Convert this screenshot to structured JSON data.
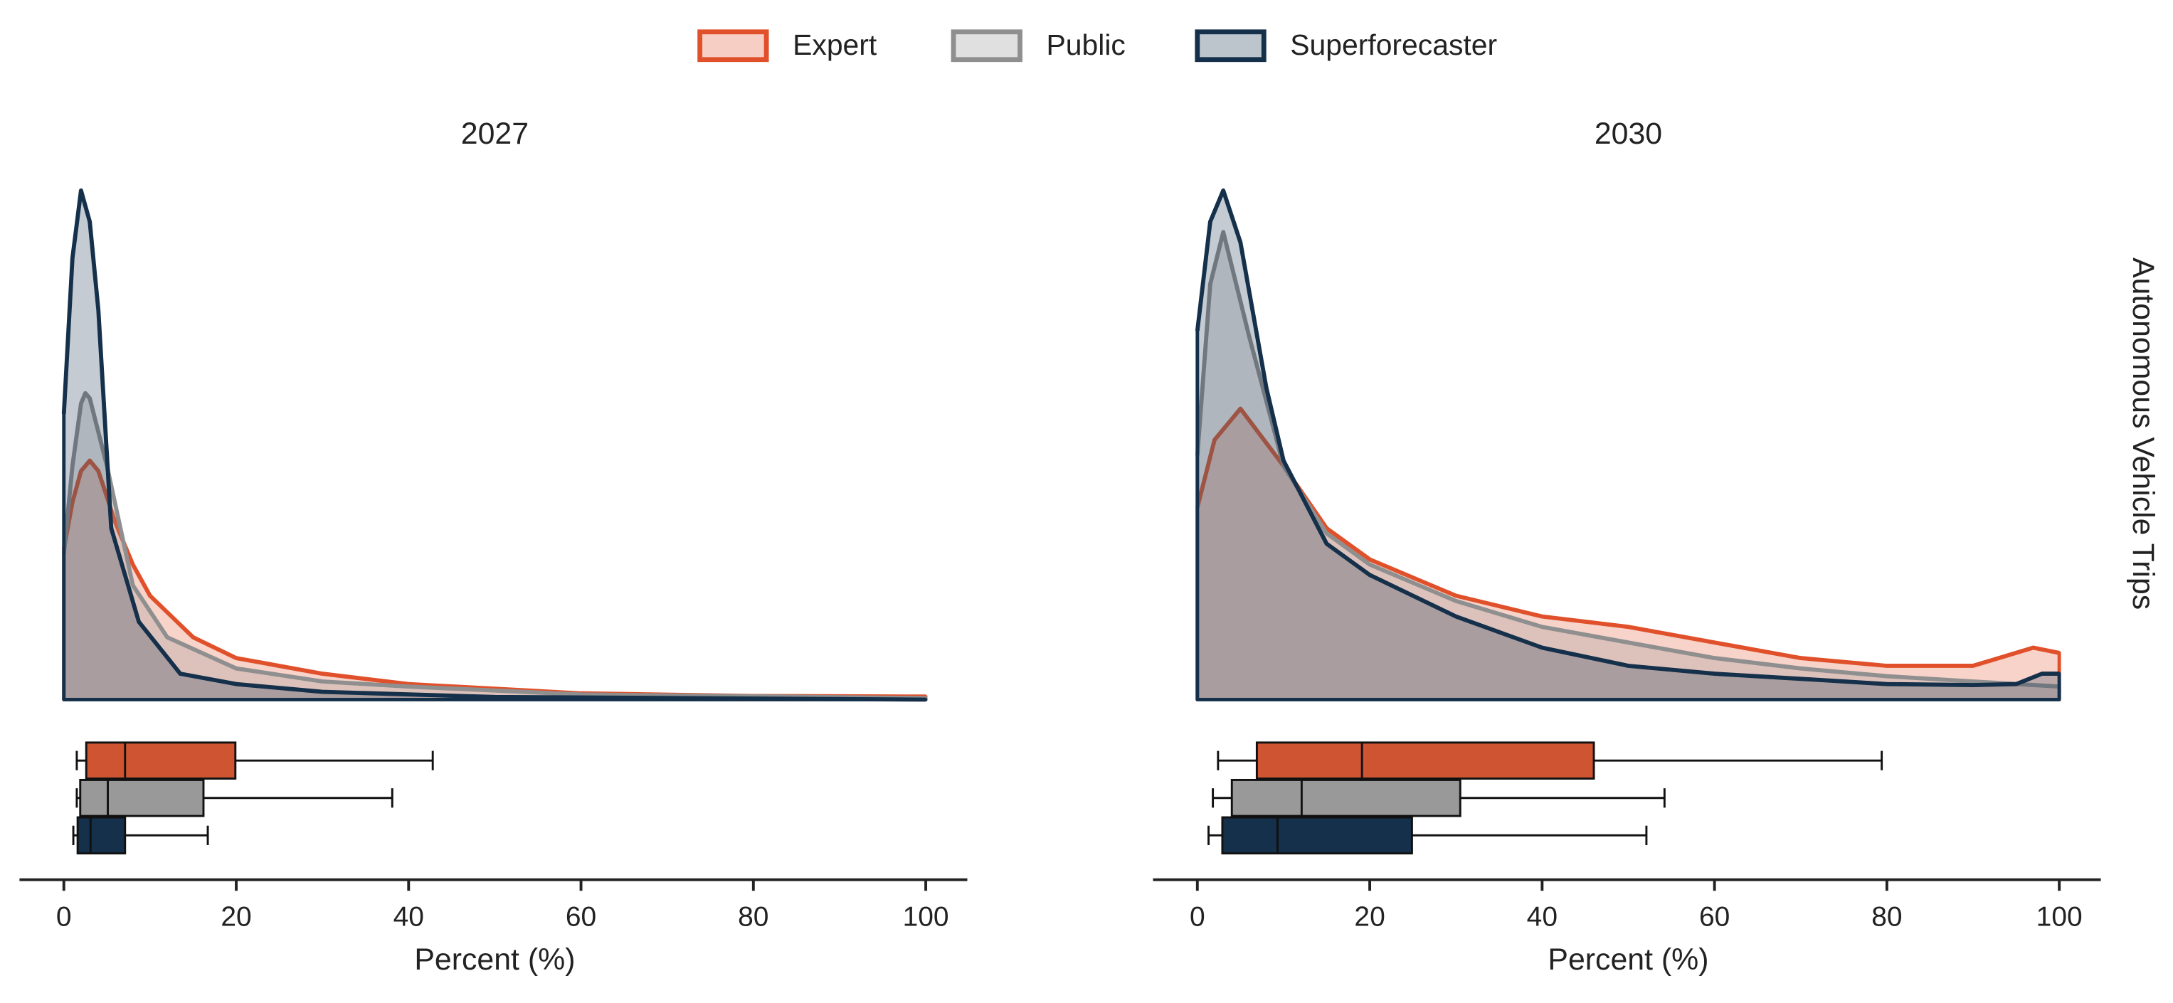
{
  "chart_data": [
    {
      "type": "density",
      "title": "2027",
      "xlabel": "Percent (%)",
      "xlim": [
        0,
        100
      ],
      "xticks": [
        0,
        20,
        40,
        60,
        80,
        100
      ],
      "ylim": [
        0,
        1
      ],
      "series": [
        {
          "name": "Expert",
          "color": "#e0502a",
          "box_color": "#cf5532",
          "x": [
            0,
            1,
            2,
            3,
            4,
            6,
            8,
            10,
            15,
            20,
            30,
            40,
            60,
            80,
            100
          ],
          "values": [
            0.29,
            0.38,
            0.44,
            0.46,
            0.44,
            0.34,
            0.26,
            0.2,
            0.12,
            0.08,
            0.05,
            0.03,
            0.012,
            0.007,
            0.006
          ],
          "box": {
            "whislo": 1.5,
            "q1": 2.6,
            "med": 7.1,
            "q3": 19.9,
            "whishi": 42.8
          }
        },
        {
          "name": "Public",
          "color": "#8f8f8f",
          "box_color": "#999999",
          "x": [
            0,
            1,
            2,
            2.5,
            3,
            5,
            8,
            12,
            20,
            30,
            40,
            60,
            100
          ],
          "values": [
            0.28,
            0.45,
            0.57,
            0.59,
            0.58,
            0.45,
            0.22,
            0.12,
            0.06,
            0.035,
            0.025,
            0.01,
            0.003
          ],
          "box": {
            "whislo": 1.5,
            "q1": 1.9,
            "med": 5.1,
            "q3": 16.2,
            "whishi": 38.1
          }
        },
        {
          "name": "Superforecaster",
          "color": "#15304a",
          "box_color": "#15304a",
          "x": [
            0,
            1,
            2,
            3,
            4,
            5.5,
            8.7,
            13.5,
            20,
            30,
            50,
            100
          ],
          "values": [
            0.55,
            0.85,
            0.98,
            0.92,
            0.75,
            0.33,
            0.15,
            0.05,
            0.03,
            0.015,
            0.005,
            0
          ],
          "box": {
            "whislo": 1.1,
            "q1": 1.6,
            "med": 3.1,
            "q3": 7.1,
            "whishi": 16.7
          }
        }
      ]
    },
    {
      "type": "density",
      "title": "2030",
      "xlabel": "Percent (%)",
      "right_label": "Autonomous Vehicle Trips",
      "xlim": [
        0,
        100
      ],
      "xticks": [
        0,
        20,
        40,
        60,
        80,
        100
      ],
      "ylim": [
        0,
        1
      ],
      "series": [
        {
          "name": "Expert",
          "color": "#e0502a",
          "box_color": "#cf5532",
          "x": [
            0,
            2,
            5,
            10,
            15,
            20,
            30,
            40,
            50,
            60,
            70,
            80,
            90,
            97,
            100
          ],
          "values": [
            0.37,
            0.5,
            0.56,
            0.45,
            0.33,
            0.27,
            0.2,
            0.16,
            0.14,
            0.11,
            0.08,
            0.065,
            0.065,
            0.1,
            0.09
          ],
          "box": {
            "whislo": 2.4,
            "q1": 6.9,
            "med": 19.1,
            "q3": 46,
            "whishi": 79.4
          }
        },
        {
          "name": "Public",
          "color": "#8f8f8f",
          "box_color": "#999999",
          "x": [
            0,
            1.5,
            3,
            6,
            10,
            15,
            20,
            30,
            40,
            50,
            60,
            70,
            80,
            90,
            100
          ],
          "values": [
            0.47,
            0.8,
            0.9,
            0.7,
            0.45,
            0.32,
            0.26,
            0.19,
            0.14,
            0.11,
            0.08,
            0.06,
            0.045,
            0.035,
            0.025
          ],
          "box": {
            "whislo": 1.8,
            "q1": 4,
            "med": 12.1,
            "q3": 30.5,
            "whishi": 54.2
          }
        },
        {
          "name": "Superforecaster",
          "color": "#15304a",
          "box_color": "#15304a",
          "x": [
            0,
            1.5,
            3,
            5,
            8,
            10,
            15,
            20,
            30,
            40,
            50,
            60,
            70,
            80,
            90,
            95,
            98,
            100
          ],
          "values": [
            0.71,
            0.92,
            0.98,
            0.88,
            0.6,
            0.46,
            0.3,
            0.24,
            0.16,
            0.1,
            0.065,
            0.05,
            0.04,
            0.03,
            0.028,
            0.03,
            0.05,
            0.05
          ],
          "box": {
            "whislo": 1.3,
            "q1": 2.9,
            "med": 9.3,
            "q3": 24.9,
            "whishi": 52.1
          }
        }
      ]
    }
  ]
}
